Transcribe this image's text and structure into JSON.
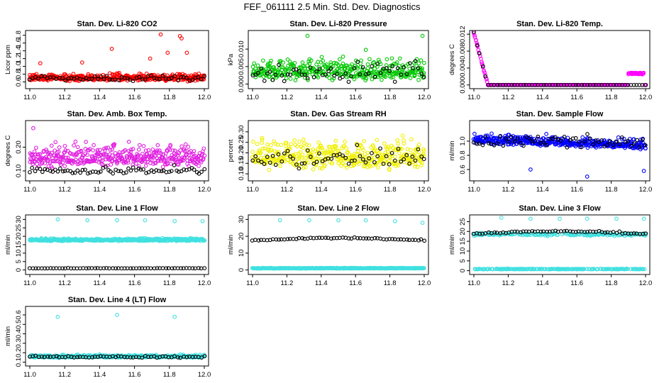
{
  "title": "FEF_061111  2.5 Min. Std. Dev. Diagnostics",
  "chart_data": [
    {
      "type": "scatter",
      "title": "Stan. Dev. Li-820 CO2",
      "ylabel": "Licor ppm",
      "xlim": [
        11.0,
        12.0
      ],
      "xticks": [
        "11.0",
        "11.2",
        "11.4",
        "11.6",
        "11.8",
        "12.0"
      ],
      "ylim": [
        0.5,
        1.85
      ],
      "yticks": [
        "0.6",
        "0.8",
        "1.0",
        "1.2",
        "1.4",
        "1.6",
        "1.8"
      ],
      "series": [
        {
          "color": "#ff0000",
          "n": 420,
          "x_range": [
            11.0,
            12.0
          ],
          "base": 0.7,
          "spread": 0.09,
          "outliers": [
            [
              11.47,
              1.45
            ],
            [
              11.69,
              1.2
            ],
            [
              11.75,
              1.82
            ],
            [
              11.79,
              1.35
            ],
            [
              11.86,
              1.78
            ],
            [
              11.87,
              1.72
            ],
            [
              11.9,
              1.35
            ],
            [
              11.06,
              1.08
            ],
            [
              11.3,
              1.1
            ]
          ]
        },
        {
          "color": "#000000",
          "n": 60,
          "x_range": [
            11.0,
            12.0
          ],
          "base": 0.68,
          "spread": 0.07
        }
      ]
    },
    {
      "type": "scatter",
      "title": "Stan. Dev. Li-820 Pressure",
      "ylabel": "kPa",
      "xlim": [
        11.0,
        12.0
      ],
      "xticks": [
        "11.0",
        "11.2",
        "11.4",
        "11.6",
        "11.8",
        "12.0"
      ],
      "ylim": [
        -0.0005,
        0.0145
      ],
      "yticks": [
        "0.000",
        "0.005",
        "0.010"
      ],
      "yticks_at": [
        0.0,
        0.005,
        0.01
      ],
      "series": [
        {
          "color": "#00c800",
          "n": 380,
          "x_range": [
            11.0,
            12.0
          ],
          "base": 0.0035,
          "spread": 0.003,
          "outliers": [
            [
              11.32,
              0.0138
            ],
            [
              11.66,
              0.0098
            ],
            [
              11.99,
              0.0138
            ]
          ]
        },
        {
          "color": "#000000",
          "n": 60,
          "x_range": [
            11.0,
            12.0
          ],
          "base": 0.003,
          "spread": 0.003
        }
      ]
    },
    {
      "type": "scatter",
      "title": "Stan. Dev. Li-820 Temp.",
      "ylabel": "degrees C",
      "xlim": [
        11.0,
        12.0
      ],
      "xticks": [
        "11.0",
        "11.2",
        "11.4",
        "11.6",
        "11.8",
        "12.0"
      ],
      "ylim": [
        -0.0002,
        0.0122
      ],
      "yticks": [
        "0.000",
        "0.004",
        "0.008",
        "0.012"
      ],
      "yticks_at": [
        0.0,
        0.004,
        0.008,
        0.012
      ],
      "series": [
        {
          "color": "#ff00ff",
          "n": 300,
          "x_range": [
            11.0,
            12.0
          ],
          "base": 0.0,
          "spread": 0.0,
          "decay": true,
          "bump": [
            11.9,
            11.99,
            0.0025
          ]
        },
        {
          "color": "#000000",
          "n": 60,
          "x_range": [
            11.0,
            12.0
          ],
          "base": 0.0,
          "spread": 0.0,
          "decay": true
        }
      ]
    },
    {
      "type": "scatter",
      "title": "Stan. Dev. Amb. Box Temp.",
      "ylabel": "degrees C",
      "xlim": [
        11.0,
        12.0
      ],
      "xticks": [
        "11.0",
        "11.2",
        "11.4",
        "11.6",
        "11.8",
        "12.0"
      ],
      "ylim": [
        0.07,
        0.3
      ],
      "yticks": [
        "0.10",
        "0.20"
      ],
      "yticks_at": [
        0.1,
        0.2
      ],
      "series": [
        {
          "color": "#e020e0",
          "n": 420,
          "x_range": [
            11.0,
            12.0
          ],
          "base": 0.155,
          "spread": 0.045,
          "outliers": [
            [
              11.02,
              0.28
            ]
          ]
        },
        {
          "color": "#000000",
          "n": 70,
          "x_range": [
            11.0,
            12.0
          ],
          "base": 0.1,
          "spread": 0.018
        }
      ]
    },
    {
      "type": "scatter",
      "title": "Stan. Dev. Gas Stream RH",
      "ylabel": "percent",
      "xlim": [
        11.0,
        12.0
      ],
      "xticks": [
        "11.0",
        "11.2",
        "11.4",
        "11.6",
        "11.8",
        "12.0"
      ],
      "ylim": [
        0.08,
        0.34
      ],
      "yticks": [
        "0.10",
        "0.15",
        "0.20",
        "0.25",
        "0.30"
      ],
      "yticks_at": [
        0.1,
        0.15,
        0.2,
        0.25,
        0.3
      ],
      "series": [
        {
          "color": "#f0f000",
          "n": 420,
          "x_range": [
            11.0,
            12.0
          ],
          "base": 0.18,
          "spread": 0.07
        },
        {
          "color": "#000000",
          "n": 60,
          "x_range": [
            11.0,
            12.0
          ],
          "base": 0.17,
          "spread": 0.05
        }
      ]
    },
    {
      "type": "scatter",
      "title": "Stan. Dev. Sample Flow",
      "ylabel": "ml/min",
      "xlim": [
        11.0,
        12.0
      ],
      "xticks": [
        "11.0",
        "11.2",
        "11.4",
        "11.6",
        "11.8",
        "12.0"
      ],
      "ylim": [
        0.48,
        1.25
      ],
      "yticks": [
        "0.6",
        "0.8",
        "1.0"
      ],
      "yticks_at": [
        0.6,
        0.8,
        1.0
      ],
      "series": [
        {
          "color": "#0000ff",
          "n": 420,
          "x_range": [
            11.0,
            12.0
          ],
          "base": 1.02,
          "spread": 0.07,
          "trend": -0.08,
          "outliers": [
            [
              11.33,
              0.6
            ],
            [
              11.66,
              0.5
            ],
            [
              11.99,
              0.58
            ]
          ]
        },
        {
          "color": "#000000",
          "n": 60,
          "x_range": [
            11.0,
            12.0
          ],
          "base": 0.98,
          "spread": 0.09
        }
      ]
    },
    {
      "type": "scatter",
      "title": "Stan. Dev. Line 1 Flow",
      "ylabel": "ml/min",
      "xlim": [
        11.0,
        12.0
      ],
      "xticks": [
        "11.0",
        "11.2",
        "11.4",
        "11.6",
        "11.8",
        "12.0"
      ],
      "ylim": [
        -1,
        31
      ],
      "yticks": [
        "0",
        "5",
        "10",
        "15",
        "20",
        "25",
        "30"
      ],
      "yticks_at": [
        0,
        5,
        10,
        15,
        20,
        25,
        30
      ],
      "series": [
        {
          "color": "#40e0e0",
          "n": 420,
          "x_range": [
            11.0,
            12.0
          ],
          "base": 17.8,
          "spread": 0.8,
          "outliers": [
            [
              11.16,
              30
            ],
            [
              11.33,
              29.5
            ],
            [
              11.5,
              29.5
            ],
            [
              11.66,
              29.5
            ],
            [
              11.83,
              29
            ],
            [
              11.99,
              29
            ]
          ]
        },
        {
          "color": "#000000",
          "n": 60,
          "x_range": [
            11.0,
            12.0
          ],
          "base": 1.0,
          "spread": 0.1
        }
      ]
    },
    {
      "type": "scatter",
      "title": "Stan. Dev. Line 2 Flow",
      "ylabel": "ml/min",
      "xlim": [
        11.0,
        12.0
      ],
      "xticks": [
        "11.0",
        "11.2",
        "11.4",
        "11.6",
        "11.8",
        "12.0"
      ],
      "ylim": [
        -1,
        31
      ],
      "yticks": [
        "0",
        "10",
        "20",
        "30"
      ],
      "yticks_at": [
        0,
        10,
        20,
        30
      ],
      "series": [
        {
          "color": "#40e0e0",
          "n": 400,
          "x_range": [
            11.0,
            12.0
          ],
          "base": 1.0,
          "spread": 0.2,
          "outliers": [
            [
              11.16,
              29.5
            ],
            [
              11.33,
              29.5
            ],
            [
              11.5,
              29.5
            ],
            [
              11.66,
              29.5
            ],
            [
              11.83,
              29
            ],
            [
              11.99,
              28
            ]
          ]
        },
        {
          "color": "#000000",
          "n": 60,
          "x_range": [
            11.0,
            12.0
          ],
          "base": 17.5,
          "spread": 0.4,
          "arc": 1.5
        }
      ]
    },
    {
      "type": "scatter",
      "title": "Stan. Dev. Line 3 Flow",
      "ylabel": "ml/min",
      "xlim": [
        11.0,
        12.0
      ],
      "xticks": [
        "11.0",
        "11.2",
        "11.4",
        "11.6",
        "11.8",
        "12.0"
      ],
      "ylim": [
        -0.5,
        27
      ],
      "yticks": [
        "0",
        "5",
        "10",
        "15",
        "20",
        "25"
      ],
      "yticks_at": [
        0,
        5,
        10,
        15,
        20,
        25
      ],
      "series": [
        {
          "color": "#40e0e0",
          "n": 400,
          "x_range": [
            11.0,
            12.0
          ],
          "base": 0.8,
          "spread": 0.15,
          "band": [
            18.5,
            0.6
          ],
          "outliers": [
            [
              11.16,
              27
            ],
            [
              11.33,
              26.5
            ],
            [
              11.5,
              26.5
            ],
            [
              11.66,
              26.5
            ],
            [
              11.83,
              26.5
            ],
            [
              11.99,
              26.5
            ]
          ]
        },
        {
          "color": "#000000",
          "n": 60,
          "x_range": [
            11.0,
            12.0
          ],
          "base": 18.8,
          "spread": 0.5,
          "arc": 1.2
        }
      ]
    },
    {
      "type": "scatter",
      "title": "Stan. Dev. Line 4 (LT) Flow",
      "ylabel": "ml/min",
      "xlim": [
        11.0,
        12.0
      ],
      "xticks": [
        "11.0",
        "11.2",
        "11.4",
        "11.6",
        "11.8",
        "12.0"
      ],
      "ylim": [
        0.09,
        0.66
      ],
      "yticks": [
        "0.1",
        "0.2",
        "0.3",
        "0.4",
        "0.5",
        "0.6"
      ],
      "yticks_at": [
        0.1,
        0.2,
        0.3,
        0.4,
        0.5,
        0.6
      ],
      "series": [
        {
          "color": "#40e0e0",
          "n": 420,
          "x_range": [
            11.0,
            12.0
          ],
          "base": 0.16,
          "spread": 0.015,
          "outliers": [
            [
              11.16,
              0.58
            ],
            [
              11.5,
              0.6
            ],
            [
              11.83,
              0.58
            ]
          ]
        },
        {
          "color": "#000000",
          "n": 60,
          "x_range": [
            11.0,
            12.0
          ],
          "base": 0.155,
          "spread": 0.01
        }
      ]
    }
  ]
}
